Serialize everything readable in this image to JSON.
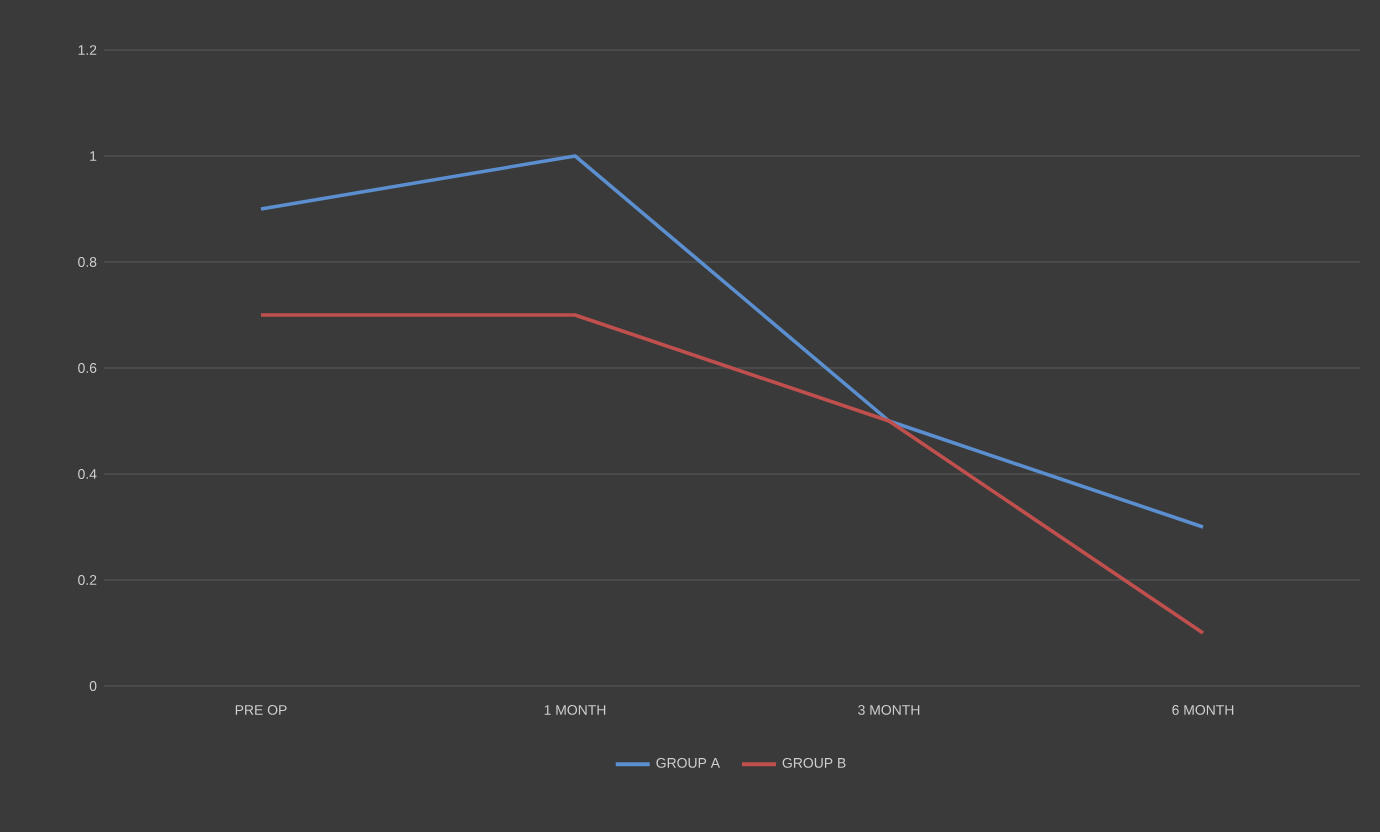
{
  "chart_data": {
    "type": "line",
    "categories": [
      "PRE OP",
      "1 MONTH",
      "3 MONTH",
      "6 MONTH"
    ],
    "series": [
      {
        "name": "GROUP A",
        "color": "#5b8fd0",
        "values": [
          0.9,
          1,
          0.5,
          0.3
        ]
      },
      {
        "name": "GROUP B",
        "color": "#c0504d",
        "values": [
          0.7,
          0.7,
          0.5,
          0.1
        ]
      }
    ],
    "ylim": [
      0,
      1.2
    ],
    "yticks": [
      0,
      0.2,
      0.4,
      0.6,
      0.8,
      1,
      1.2
    ],
    "grid": "y",
    "legend": "bottom",
    "marker": "none",
    "line_style": "solid"
  }
}
